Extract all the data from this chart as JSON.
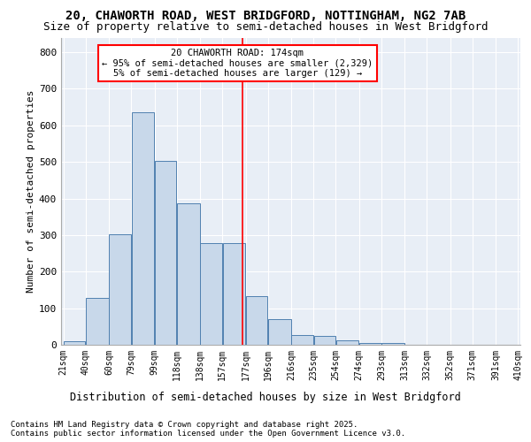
{
  "title_line1": "20, CHAWORTH ROAD, WEST BRIDGFORD, NOTTINGHAM, NG2 7AB",
  "title_line2": "Size of property relative to semi-detached houses in West Bridgford",
  "xlabel": "Distribution of semi-detached houses by size in West Bridgford",
  "ylabel": "Number of semi-detached properties",
  "footer_line1": "Contains HM Land Registry data © Crown copyright and database right 2025.",
  "footer_line2": "Contains public sector information licensed under the Open Government Licence v3.0.",
  "bins": [
    21,
    40,
    60,
    79,
    99,
    118,
    138,
    157,
    177,
    196,
    216,
    235,
    254,
    274,
    293,
    313,
    332,
    352,
    371,
    391,
    410
  ],
  "bar_values": [
    10,
    128,
    301,
    636,
    502,
    386,
    279,
    279,
    133,
    70,
    26,
    25,
    11,
    6,
    5,
    0,
    0,
    0,
    0,
    0
  ],
  "bar_color": "#c8d8ea",
  "bar_edge_color": "#5080b0",
  "property_size": 174,
  "property_line_color": "red",
  "annotation_text": "20 CHAWORTH ROAD: 174sqm\n← 95% of semi-detached houses are smaller (2,329)\n5% of semi-detached houses are larger (129) →",
  "ylim": [
    0,
    840
  ],
  "yticks": [
    0,
    100,
    200,
    300,
    400,
    500,
    600,
    700,
    800
  ],
  "bg_color": "#e8eef6",
  "grid_color": "white",
  "title_fontsize": 10,
  "subtitle_fontsize": 9,
  "tick_fontsize": 7,
  "ylabel_fontsize": 8,
  "xlabel_fontsize": 8.5,
  "footer_fontsize": 6.5,
  "annot_fontsize": 7.5
}
